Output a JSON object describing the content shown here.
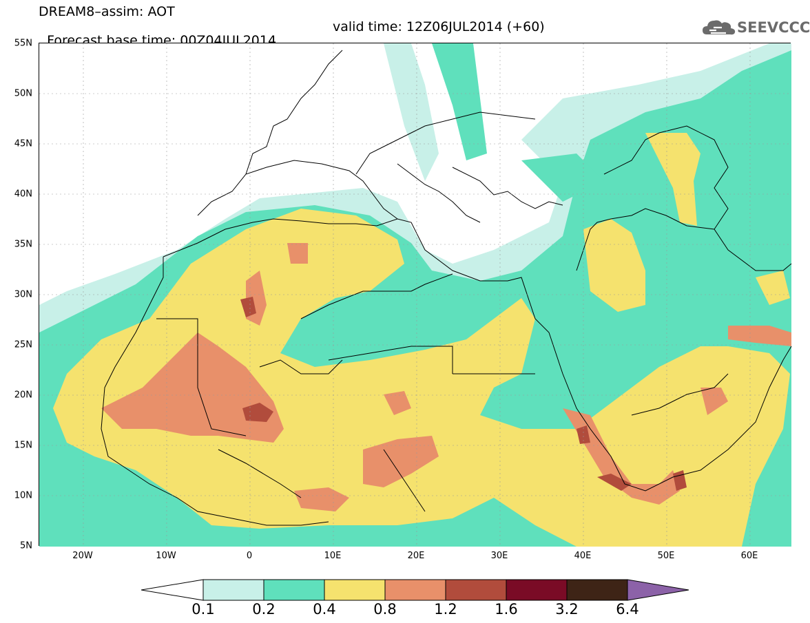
{
  "title_line1": "DREAM8–assim: AOT",
  "title_line2": "Forecast base time: 00Z04JUL2014",
  "valid_time": "valid time: 12Z06JUL2014 (+60)",
  "logo_text": "SEEVCCC",
  "lat_labels": [
    "55N",
    "50N",
    "45N",
    "40N",
    "35N",
    "30N",
    "25N",
    "20N",
    "15N",
    "10N",
    "5N"
  ],
  "lon_labels": [
    "20W",
    "10W",
    "0",
    "10E",
    "20E",
    "30E",
    "40E",
    "50E",
    "60E"
  ],
  "colorbar_labels": [
    "0.1",
    "0.2",
    "0.4",
    "0.8",
    "1.2",
    "1.6",
    "3.2",
    "6.4"
  ],
  "colors": {
    "c01": "#c8f0e8",
    "c02": "#5fe0bc",
    "c04": "#f5e26e",
    "c08": "#e8906a",
    "c12": "#b14c3c",
    "c16": "#7a0b26",
    "c32": "#3e2416",
    "c64": "#8c62a8"
  }
}
